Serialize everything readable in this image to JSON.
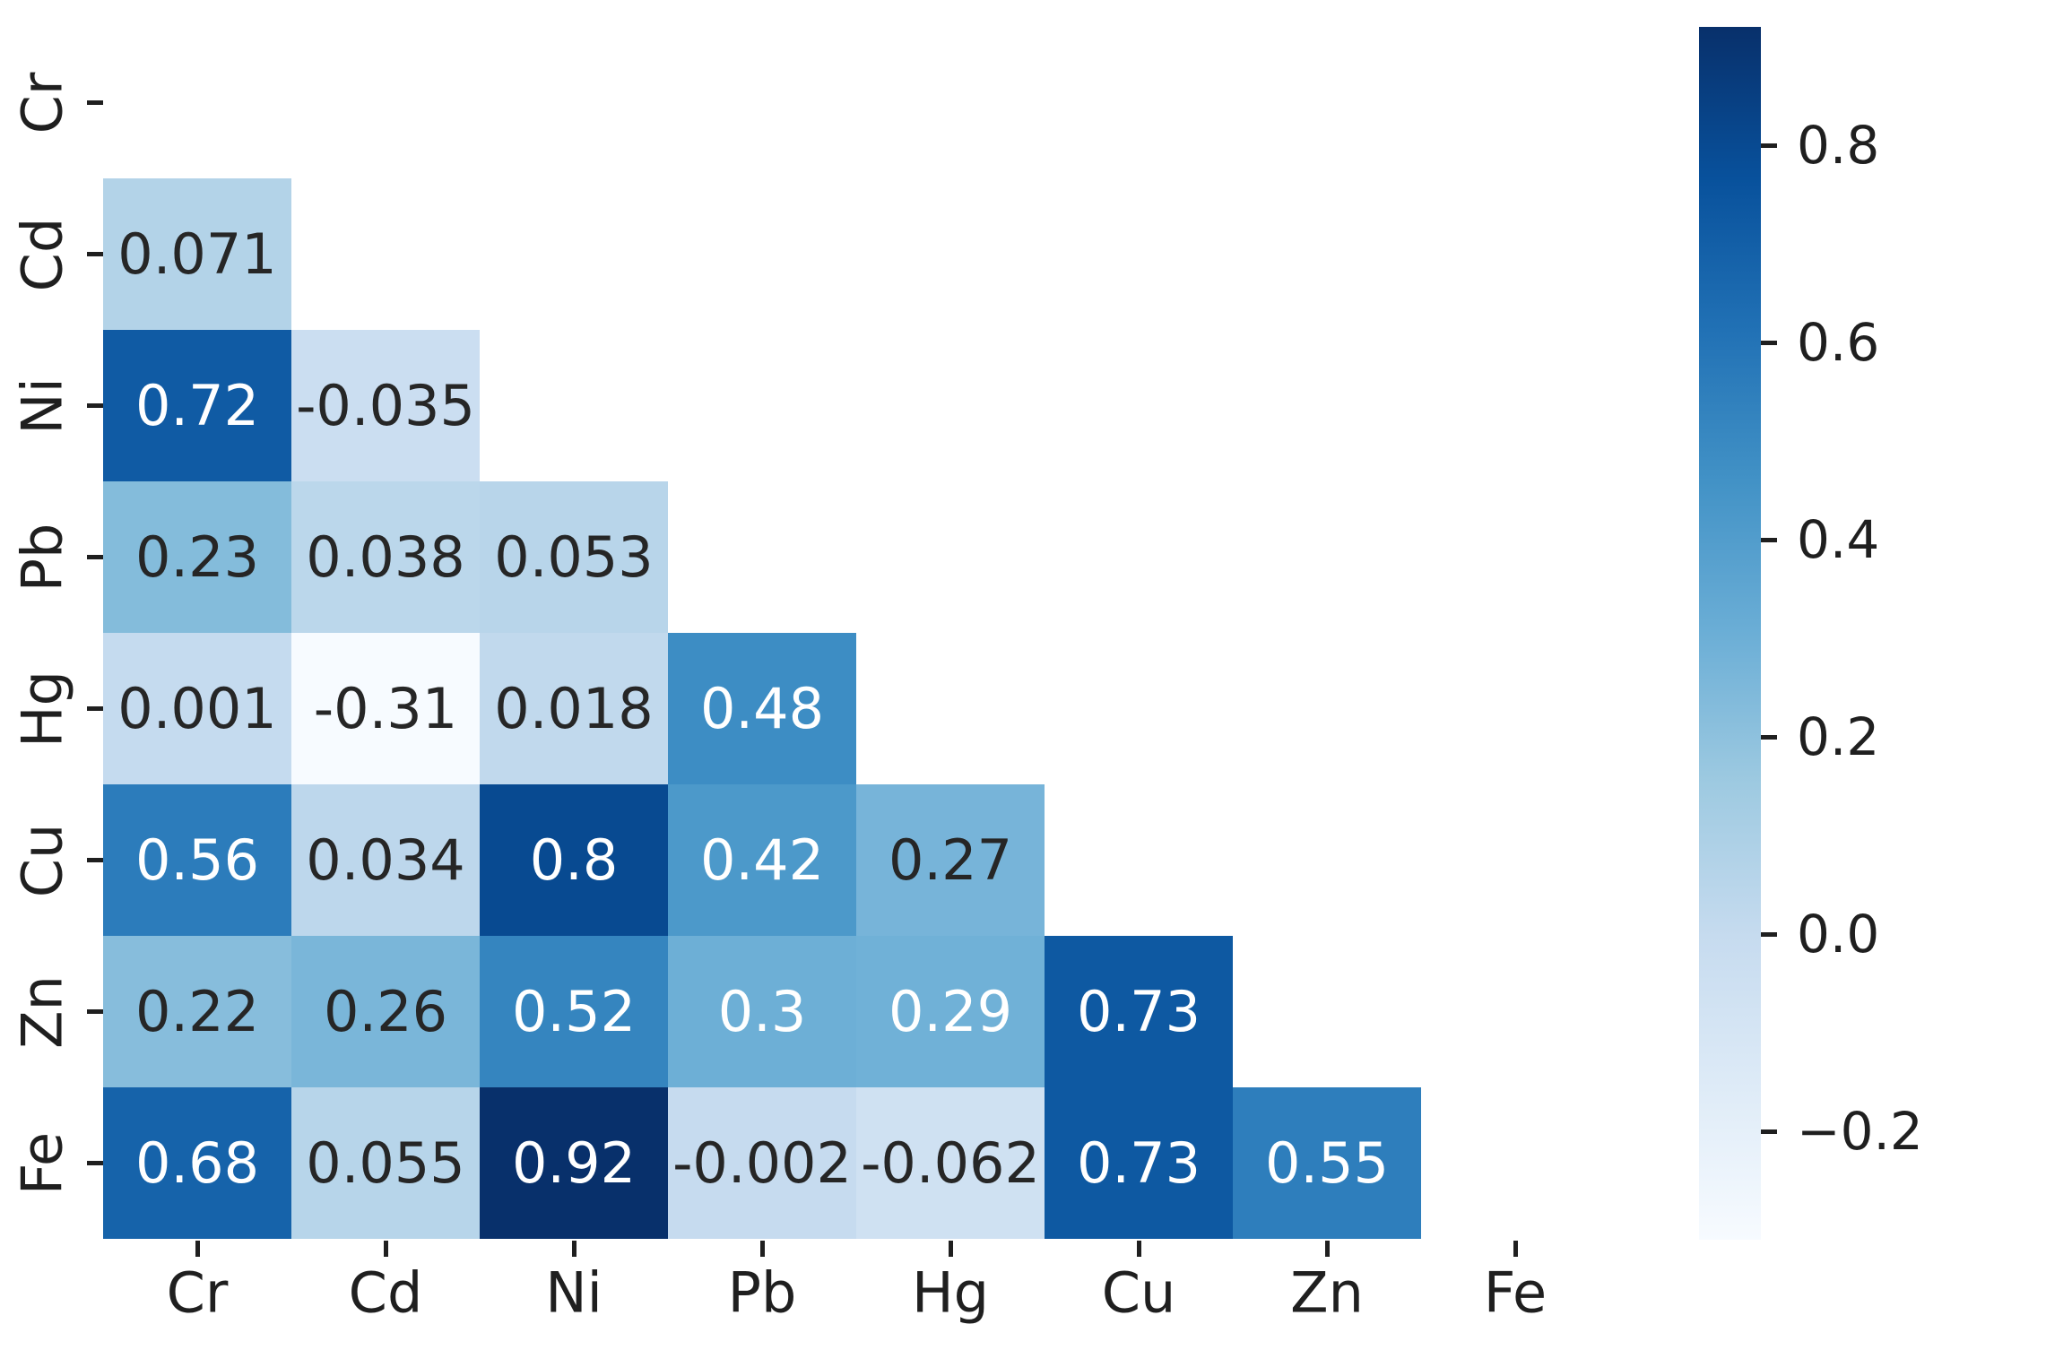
{
  "figure": {
    "background": "#ffffff"
  },
  "chart_data": {
    "type": "heatmap",
    "title": "",
    "subtitle": "",
    "description": "Lower-triangle correlation matrix heatmap (diagonal and upper triangle masked)",
    "x_categories": [
      "Cr",
      "Cd",
      "Ni",
      "Pb",
      "Hg",
      "Cu",
      "Zn",
      "Fe"
    ],
    "y_categories": [
      "Cr",
      "Cd",
      "Ni",
      "Pb",
      "Hg",
      "Cu",
      "Zn",
      "Fe"
    ],
    "mask": "diagonal-and-upper-triangle",
    "grid": false,
    "values": [
      [
        null,
        null,
        null,
        null,
        null,
        null,
        null,
        null
      ],
      [
        0.071,
        null,
        null,
        null,
        null,
        null,
        null,
        null
      ],
      [
        0.72,
        -0.035,
        null,
        null,
        null,
        null,
        null,
        null
      ],
      [
        0.23,
        0.038,
        0.053,
        null,
        null,
        null,
        null,
        null
      ],
      [
        0.001,
        -0.31,
        0.018,
        0.48,
        null,
        null,
        null,
        null
      ],
      [
        0.56,
        0.034,
        0.8,
        0.42,
        0.27,
        null,
        null,
        null
      ],
      [
        0.22,
        0.26,
        0.52,
        0.3,
        0.29,
        0.73,
        null,
        null
      ],
      [
        0.68,
        0.055,
        0.92,
        -0.002,
        -0.062,
        0.73,
        0.55,
        null
      ]
    ],
    "labels": [
      [
        null,
        null,
        null,
        null,
        null,
        null,
        null,
        null
      ],
      [
        "0.071",
        null,
        null,
        null,
        null,
        null,
        null,
        null
      ],
      [
        "0.72",
        "-0.035",
        null,
        null,
        null,
        null,
        null,
        null
      ],
      [
        "0.23",
        "0.038",
        "0.053",
        null,
        null,
        null,
        null,
        null
      ],
      [
        "0.001",
        "-0.31",
        "0.018",
        "0.48",
        null,
        null,
        null,
        null
      ],
      [
        "0.56",
        "0.034",
        "0.8",
        "0.42",
        "0.27",
        null,
        null,
        null
      ],
      [
        "0.22",
        "0.26",
        "0.52",
        "0.3",
        "0.29",
        "0.73",
        null,
        null
      ],
      [
        "0.68",
        "0.055",
        "0.92",
        "-0.002",
        "-0.062",
        "0.73",
        "0.55",
        null
      ]
    ],
    "colormap": {
      "name": "Blues",
      "vmin": -0.31,
      "vmax": 0.92,
      "anchors": [
        {
          "p": 0.0,
          "color": "#f7fbff"
        },
        {
          "p": 0.125,
          "color": "#deebf7"
        },
        {
          "p": 0.25,
          "color": "#c6dbef"
        },
        {
          "p": 0.375,
          "color": "#9ecae1"
        },
        {
          "p": 0.5,
          "color": "#6baed6"
        },
        {
          "p": 0.625,
          "color": "#4292c6"
        },
        {
          "p": 0.75,
          "color": "#2171b5"
        },
        {
          "p": 0.875,
          "color": "#08519c"
        },
        {
          "p": 1.0,
          "color": "#08306b"
        }
      ]
    },
    "colorbar": {
      "position": "right",
      "ticks": [
        {
          "value": 0.8,
          "label": "0.8"
        },
        {
          "value": 0.6,
          "label": "0.6"
        },
        {
          "value": 0.4,
          "label": "0.4"
        },
        {
          "value": 0.2,
          "label": "0.2"
        },
        {
          "value": 0.0,
          "label": "0.0"
        },
        {
          "value": -0.2,
          "label": "−0.2"
        }
      ]
    },
    "annotation": {
      "color_on_light": "#262626",
      "color_on_dark": "#ffffff",
      "white_text_threshold": 0.48
    },
    "axes": {
      "tick_color": "#1f1f1f",
      "label_color": "#1f1f1f"
    }
  }
}
